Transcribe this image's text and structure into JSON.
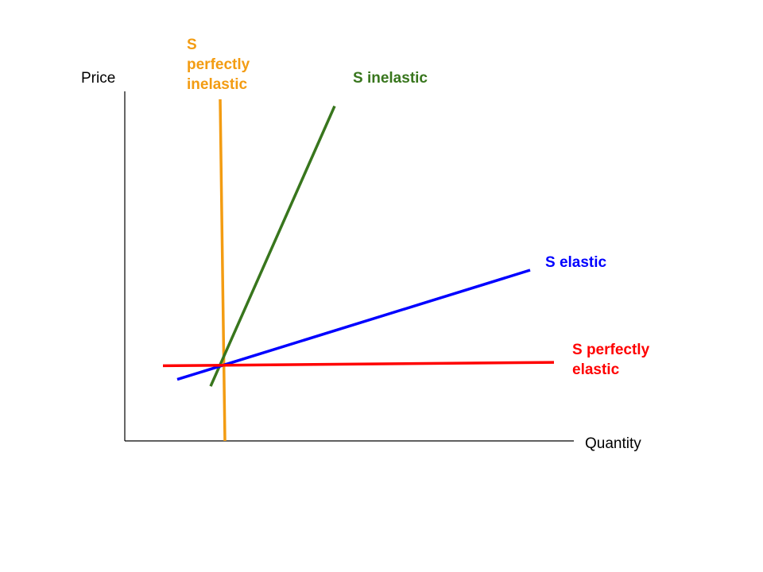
{
  "chart_data": {
    "type": "line",
    "title": "",
    "xlabel": "Quantity",
    "ylabel": "Price",
    "grid": false,
    "legend": "none",
    "series": [
      {
        "name": "S perfectly inelastic",
        "label_lines": [
          "S",
          "perfectly",
          "inelastic"
        ],
        "color": "#f39c12",
        "x": [
          2.0,
          2.1
        ],
        "y": [
          10.0,
          0.0
        ]
      },
      {
        "name": "S inelastic",
        "label_lines": [
          "S inelastic"
        ],
        "color": "#38761d",
        "x": [
          1.8,
          4.4
        ],
        "y": [
          1.6,
          9.8
        ]
      },
      {
        "name": "S elastic",
        "label_lines": [
          "S elastic"
        ],
        "color": "#0000ff",
        "x": [
          1.1,
          8.5
        ],
        "y": [
          1.8,
          5.0
        ]
      },
      {
        "name": "S perfectly elastic",
        "label_lines": [
          "S perfectly",
          "elastic"
        ],
        "color": "#ff0000",
        "x": [
          0.8,
          9.0
        ],
        "y": [
          2.2,
          2.3
        ]
      }
    ]
  }
}
